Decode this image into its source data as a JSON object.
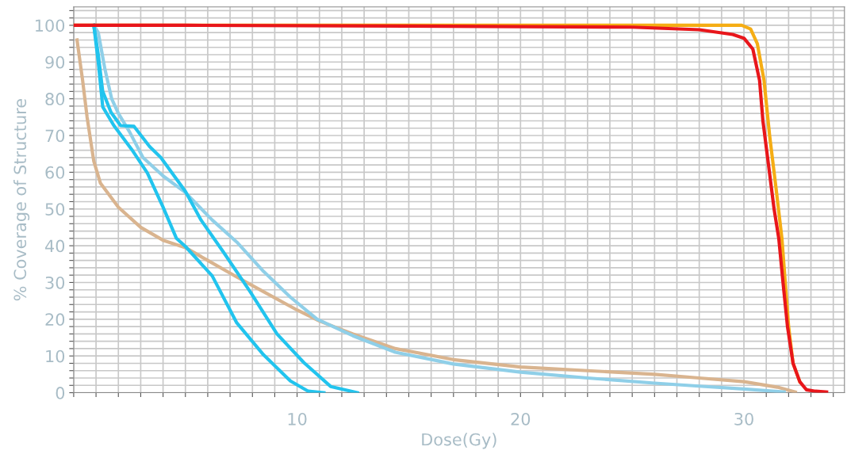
{
  "chart_data": {
    "type": "line",
    "xlabel": "Dose(Gy)",
    "ylabel": "% Coverage of Structure",
    "xlim": [
      0,
      34.5
    ],
    "ylim": [
      0,
      105
    ],
    "xticks": [
      {
        "value": 0,
        "label": null
      },
      {
        "value": 1,
        "label": null
      },
      {
        "value": 2,
        "label": null
      },
      {
        "value": 3,
        "label": null
      },
      {
        "value": 4,
        "label": null
      },
      {
        "value": 5,
        "label": null
      },
      {
        "value": 6,
        "label": null
      },
      {
        "value": 7,
        "label": null
      },
      {
        "value": 8,
        "label": null
      },
      {
        "value": 9,
        "label": null
      },
      10,
      {
        "value": 11,
        "label": null
      },
      {
        "value": 12,
        "label": null
      },
      {
        "value": 13,
        "label": null
      },
      {
        "value": 14,
        "label": null
      },
      {
        "value": 15,
        "label": null
      },
      {
        "value": 16,
        "label": null
      },
      {
        "value": 17,
        "label": null
      },
      {
        "value": 18,
        "label": null
      },
      {
        "value": 19,
        "label": null
      },
      20,
      {
        "value": 21,
        "label": null
      },
      {
        "value": 22,
        "label": null
      },
      {
        "value": 23,
        "label": null
      },
      {
        "value": 24,
        "label": null
      },
      {
        "value": 25,
        "label": null
      },
      {
        "value": 26,
        "label": null
      },
      {
        "value": 27,
        "label": null
      },
      {
        "value": 28,
        "label": null
      },
      {
        "value": 29,
        "label": null
      },
      30,
      {
        "value": 31,
        "label": null
      },
      {
        "value": 32,
        "label": null
      },
      {
        "value": 33,
        "label": null
      },
      {
        "value": 34,
        "label": null
      }
    ],
    "yticks": [
      0,
      {
        "value": 2,
        "label": null
      },
      {
        "value": 4,
        "label": null
      },
      {
        "value": 6,
        "label": null
      },
      {
        "value": 8,
        "label": null
      },
      10,
      {
        "value": 12,
        "label": null
      },
      {
        "value": 14,
        "label": null
      },
      {
        "value": 16,
        "label": null
      },
      {
        "value": 18,
        "label": null
      },
      20,
      {
        "value": 22,
        "label": null
      },
      {
        "value": 24,
        "label": null
      },
      {
        "value": 26,
        "label": null
      },
      {
        "value": 28,
        "label": null
      },
      30,
      {
        "value": 32,
        "label": null
      },
      {
        "value": 34,
        "label": null
      },
      {
        "value": 36,
        "label": null
      },
      {
        "value": 38,
        "label": null
      },
      40,
      {
        "value": 42,
        "label": null
      },
      {
        "value": 44,
        "label": null
      },
      {
        "value": 46,
        "label": null
      },
      {
        "value": 48,
        "label": null
      },
      50,
      {
        "value": 52,
        "label": null
      },
      {
        "value": 54,
        "label": null
      },
      {
        "value": 56,
        "label": null
      },
      {
        "value": 58,
        "label": null
      },
      60,
      {
        "value": 62,
        "label": null
      },
      {
        "value": 64,
        "label": null
      },
      {
        "value": 66,
        "label": null
      },
      {
        "value": 68,
        "label": null
      },
      70,
      {
        "value": 72,
        "label": null
      },
      {
        "value": 74,
        "label": null
      },
      {
        "value": 76,
        "label": null
      },
      {
        "value": 78,
        "label": null
      },
      80,
      {
        "value": 82,
        "label": null
      },
      {
        "value": 84,
        "label": null
      },
      {
        "value": 86,
        "label": null
      },
      {
        "value": 88,
        "label": null
      },
      90,
      {
        "value": 92,
        "label": null
      },
      {
        "value": 94,
        "label": null
      },
      {
        "value": 96,
        "label": null
      },
      {
        "value": 98,
        "label": null
      },
      100,
      {
        "value": 102,
        "label": null
      },
      {
        "value": 104,
        "label": null
      }
    ],
    "grid": true,
    "marker": "none",
    "line_style": "solid",
    "series": [
      {
        "color": "#d9b48f",
        "x": [
          0.15,
          0.4,
          0.6,
          0.9,
          1.2,
          2,
          3,
          4,
          5,
          6,
          7.3,
          8.5,
          10,
          11,
          12.5,
          14.4,
          17,
          20,
          23,
          26,
          28,
          30,
          31.5,
          32.3
        ],
        "values": [
          96,
          85,
          75,
          63,
          57,
          50.5,
          45,
          41.5,
          39.5,
          36,
          31.5,
          27.5,
          22.5,
          19.5,
          16,
          12,
          9,
          7,
          6,
          5,
          4,
          3,
          1.5,
          0.2
        ]
      },
      {
        "color": "#8fcfe8",
        "x": [
          0.9,
          1.1,
          1.4,
          1.7,
          2,
          2.5,
          3.1,
          4,
          5,
          6.2,
          7.3,
          8.5,
          9.7,
          10.9,
          12.5,
          14.4,
          17,
          20,
          23,
          26,
          28,
          30,
          31.8
        ],
        "values": [
          100,
          98,
          88,
          80,
          76,
          71,
          64,
          59,
          54.5,
          47,
          41,
          33,
          26,
          20,
          15.5,
          11,
          7.8,
          5.6,
          4,
          2.6,
          1.8,
          1,
          0.2
        ]
      },
      {
        "color": "#22c4ee",
        "x": [
          0.9,
          1.1,
          1.3,
          1.8,
          2.6,
          3.3,
          4.0,
          4.6,
          5.0,
          6.2,
          7.3,
          8.5,
          9.7,
          10.5,
          11.2
        ],
        "values": [
          100,
          90,
          77.8,
          72.7,
          66.2,
          59.8,
          50.5,
          42,
          39.8,
          31.8,
          19,
          10.3,
          3.2,
          0.4,
          0
        ]
      },
      {
        "color": "#22c4ee",
        "x": [
          0.9,
          1.1,
          1.3,
          1.67,
          2.1,
          2.7,
          3.4,
          3.9,
          5.0,
          5.7,
          6.7,
          7.9,
          9.1,
          10.3,
          11.5,
          12.7
        ],
        "values": [
          100,
          92,
          82,
          76.3,
          72.7,
          72.5,
          67,
          64,
          54.8,
          47,
          38.3,
          27.5,
          16,
          8.2,
          1.7,
          0
        ]
      },
      {
        "color": "#f5ad14",
        "x": [
          0,
          15,
          29.9,
          30.3,
          30.6,
          30.9,
          31.15,
          31.45,
          31.7,
          31.85,
          32.0,
          32.2,
          32.5
        ],
        "values": [
          100,
          100,
          100,
          99,
          95,
          85,
          70,
          55,
          42,
          30,
          18,
          8,
          3
        ]
      },
      {
        "color": "#e8161b",
        "x": [
          0,
          5,
          15,
          25,
          28,
          29.5,
          30.0,
          30.4,
          30.7,
          30.85,
          31.1,
          31.35,
          31.56,
          31.75,
          31.95,
          32.2,
          32.5,
          32.8,
          33.2,
          33.7
        ],
        "values": [
          100,
          100,
          99.8,
          99.5,
          98.8,
          97.5,
          96.5,
          93.5,
          85,
          74,
          62,
          50,
          42,
          30,
          18,
          8,
          3,
          0.8,
          0.4,
          0.2
        ]
      }
    ]
  }
}
